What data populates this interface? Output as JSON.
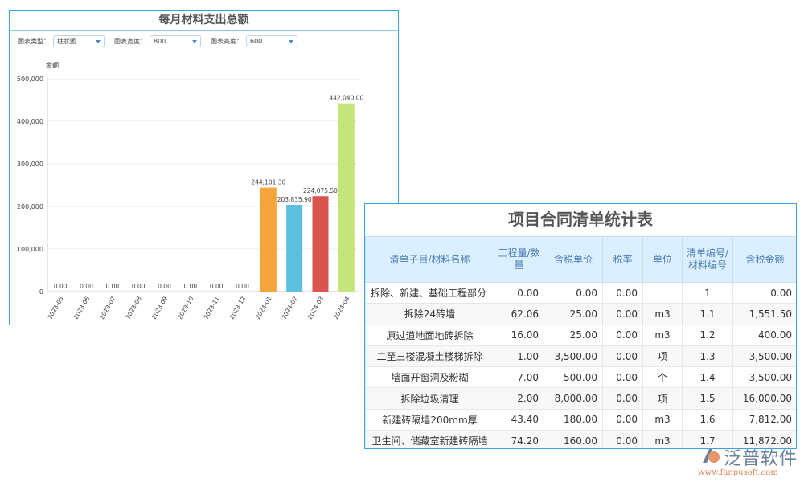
{
  "chart_panel": {
    "title": "每月材料支出总额",
    "controls": [
      {
        "label": "图表类型：",
        "value": "柱状图"
      },
      {
        "label": "图表宽度：",
        "value": "800"
      },
      {
        "label": "图表高度：",
        "value": "600"
      }
    ]
  },
  "chart_data": {
    "type": "bar",
    "title": "每月材料支出总额",
    "ylabel": "金额",
    "xlabel": "",
    "ylim": [
      0,
      500000
    ],
    "yticks": [
      "0",
      "100,000",
      "200,000",
      "300,000",
      "400,000",
      "500,000"
    ],
    "grid": true,
    "categories": [
      "2023-05",
      "2023-06",
      "2023-07",
      "2023-08",
      "2023-09",
      "2023-10",
      "2023-11",
      "2023-12",
      "2024-01",
      "2024-02",
      "2024-03",
      "2024-04"
    ],
    "values": [
      0,
      0,
      0,
      0,
      0,
      0,
      0,
      0,
      244101.3,
      203835.9,
      224075.5,
      442040.0
    ],
    "data_labels": [
      "0.00",
      "0.00",
      "0.00",
      "0.00",
      "0.00",
      "0.00",
      "0.00",
      "0.00",
      "244,101.30",
      "203,835.90",
      "224,075.50",
      "442,040.00"
    ],
    "colors": [
      "#f4a43a",
      "#f4a43a",
      "#f4a43a",
      "#f4a43a",
      "#f4a43a",
      "#f4a43a",
      "#f4a43a",
      "#f4a43a",
      "#f4a43a",
      "#5bc0de",
      "#d9534f",
      "#c5e57a"
    ]
  },
  "table_panel": {
    "title": "项目合同清单统计表",
    "headers": [
      "清单子目/材料名称",
      "工程量/数量",
      "含税单价",
      "税率",
      "单位",
      "清单编号/材料编号",
      "含税金额"
    ],
    "rows": [
      [
        "拆除、新建、基础工程部分",
        "0.00",
        "0.00",
        "0.00",
        "",
        "1",
        "0.00"
      ],
      [
        "拆除24砖墙",
        "62.06",
        "25.00",
        "0.00",
        "m3",
        "1.1",
        "1,551.50"
      ],
      [
        "原过道地面地砖拆除",
        "16.00",
        "25.00",
        "0.00",
        "m3",
        "1.2",
        "400.00"
      ],
      [
        "二至三楼混凝土楼梯拆除",
        "1.00",
        "3,500.00",
        "0.00",
        "项",
        "1.3",
        "3,500.00"
      ],
      [
        "墙面开窗洞及粉糊",
        "7.00",
        "500.00",
        "0.00",
        "个",
        "1.4",
        "3,500.00"
      ],
      [
        "拆除垃圾清理",
        "2.00",
        "8,000.00",
        "0.00",
        "项",
        "1.5",
        "16,000.00"
      ],
      [
        "新建砖隔墙200mm厚",
        "43.40",
        "180.00",
        "0.00",
        "m3",
        "1.6",
        "7,812.00"
      ],
      [
        "卫生间、储藏室新建砖隔墙",
        "74.20",
        "160.00",
        "0.00",
        "m3",
        "1.7",
        "11,872.00"
      ]
    ]
  },
  "logo": {
    "brand": "泛普软件",
    "url": "www.fanpusoft.com"
  }
}
